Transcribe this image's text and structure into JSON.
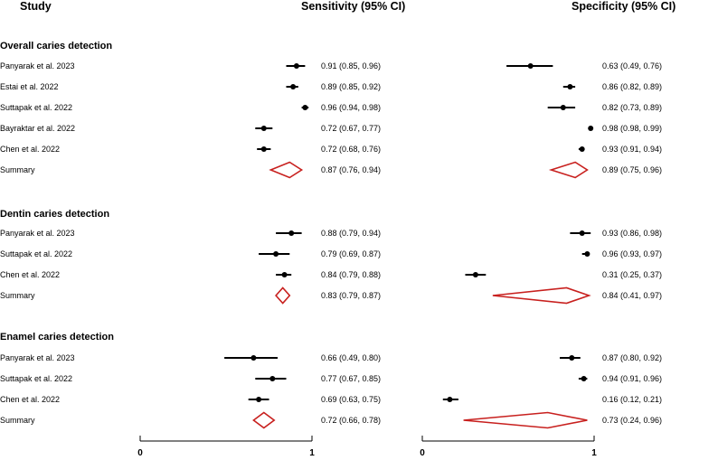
{
  "headers": {
    "study": "Study",
    "sensitivity": "Sensitivity (95% CI)",
    "specificity": "Specificity (95% CI)"
  },
  "colors": {
    "point": "#000000",
    "summary": "#c8201e"
  },
  "chart_data": {
    "type": "forest",
    "axes": {
      "sensitivity": {
        "xlim": [
          0,
          1
        ],
        "ticks": [
          "0",
          "1"
        ]
      },
      "specificity": {
        "xlim": [
          0,
          1
        ],
        "ticks": [
          "0",
          "1"
        ]
      }
    },
    "groups": [
      {
        "title": "Overall caries detection",
        "rows": [
          {
            "study": "Panyarak et al. 2023",
            "sens": [
              0.91,
              0.85,
              0.96
            ],
            "sens_text": "0.91 (0.85, 0.96)",
            "spec": [
              0.63,
              0.49,
              0.76
            ],
            "spec_text": "0.63 (0.49, 0.76)"
          },
          {
            "study": "Estai et al. 2022",
            "sens": [
              0.89,
              0.85,
              0.92
            ],
            "sens_text": "0.89 (0.85, 0.92)",
            "spec": [
              0.86,
              0.82,
              0.89
            ],
            "spec_text": "0.86 (0.82, 0.89)"
          },
          {
            "study": "Suttapak et al. 2022",
            "sens": [
              0.96,
              0.94,
              0.98
            ],
            "sens_text": "0.96 (0.94, 0.98)",
            "spec": [
              0.82,
              0.73,
              0.89
            ],
            "spec_text": "0.82 (0.73, 0.89)"
          },
          {
            "study": "Bayraktar et al. 2022",
            "sens": [
              0.72,
              0.67,
              0.77
            ],
            "sens_text": "0.72 (0.67, 0.77)",
            "spec": [
              0.98,
              0.98,
              0.99
            ],
            "spec_text": "0.98 (0.98, 0.99)"
          },
          {
            "study": "Chen et al. 2022",
            "sens": [
              0.72,
              0.68,
              0.76
            ],
            "sens_text": "0.72 (0.68, 0.76)",
            "spec": [
              0.93,
              0.91,
              0.94
            ],
            "spec_text": "0.93 (0.91, 0.94)"
          }
        ],
        "summary": {
          "label": "Summary",
          "sens": [
            0.87,
            0.76,
            0.94
          ],
          "sens_text": "0.87 (0.76, 0.94)",
          "spec": [
            0.89,
            0.75,
            0.96
          ],
          "spec_text": "0.89 (0.75, 0.96)"
        }
      },
      {
        "title": "Dentin caries detection",
        "rows": [
          {
            "study": "Panyarak et al. 2023",
            "sens": [
              0.88,
              0.79,
              0.94
            ],
            "sens_text": "0.88 (0.79, 0.94)",
            "spec": [
              0.93,
              0.86,
              0.98
            ],
            "spec_text": "0.93 (0.86, 0.98)"
          },
          {
            "study": "Suttapak et al. 2022",
            "sens": [
              0.79,
              0.69,
              0.87
            ],
            "sens_text": "0.79 (0.69, 0.87)",
            "spec": [
              0.96,
              0.93,
              0.97
            ],
            "spec_text": "0.96 (0.93, 0.97)"
          },
          {
            "study": "Chen et al. 2022",
            "sens": [
              0.84,
              0.79,
              0.88
            ],
            "sens_text": "0.84 (0.79, 0.88)",
            "spec": [
              0.31,
              0.25,
              0.37
            ],
            "spec_text": "0.31 (0.25, 0.37)"
          }
        ],
        "summary": {
          "label": "Summary",
          "sens": [
            0.83,
            0.79,
            0.87
          ],
          "sens_text": "0.83 (0.79, 0.87)",
          "spec": [
            0.84,
            0.41,
            0.97
          ],
          "spec_text": "0.84 (0.41, 0.97)"
        }
      },
      {
        "title": "Enamel caries detection",
        "rows": [
          {
            "study": "Panyarak et al. 2023",
            "sens": [
              0.66,
              0.49,
              0.8
            ],
            "sens_text": "0.66 (0.49, 0.80)",
            "spec": [
              0.87,
              0.8,
              0.92
            ],
            "spec_text": "0.87 (0.80, 0.92)"
          },
          {
            "study": "Suttapak et al. 2022",
            "sens": [
              0.77,
              0.67,
              0.85
            ],
            "sens_text": "0.77 (0.67, 0.85)",
            "spec": [
              0.94,
              0.91,
              0.96
            ],
            "spec_text": "0.94 (0.91, 0.96)"
          },
          {
            "study": "Chen et al. 2022",
            "sens": [
              0.69,
              0.63,
              0.75
            ],
            "sens_text": "0.69 (0.63, 0.75)",
            "spec": [
              0.16,
              0.12,
              0.21
            ],
            "spec_text": "0.16 (0.12, 0.21)"
          }
        ],
        "summary": {
          "label": "Summary",
          "sens": [
            0.72,
            0.66,
            0.78
          ],
          "sens_text": "0.72 (0.66, 0.78)",
          "spec": [
            0.73,
            0.24,
            0.96
          ],
          "spec_text": "0.73 (0.24, 0.96)"
        }
      }
    ]
  }
}
